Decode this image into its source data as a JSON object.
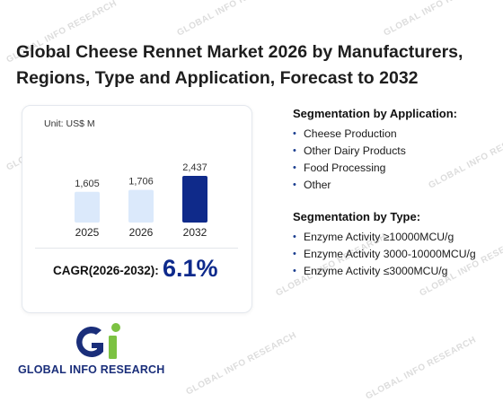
{
  "title": "Global Cheese Rennet Market 2026 by Manufacturers, Regions, Type and Application, Forecast to 2032",
  "chart_data": {
    "type": "bar",
    "unit_label": "Unit: US$ M",
    "categories": [
      "2025",
      "2026",
      "2032"
    ],
    "values": [
      1605,
      1706,
      2437
    ],
    "value_labels": [
      "1,605",
      "1,706",
      "2,437"
    ],
    "bar_colors": [
      "#dbe9fb",
      "#dbe9fb",
      "#0f2a8a"
    ],
    "cagr_label": "CAGR(2026-2032):",
    "cagr_value": "6.1%"
  },
  "segmentation_application": {
    "title": "Segmentation by Application:",
    "items": [
      "Cheese Production",
      "Other Dairy Products",
      "Food Processing",
      "Other"
    ]
  },
  "segmentation_type": {
    "title": "Segmentation by Type:",
    "items": [
      "Enzyme Activity ≥10000MCU/g",
      "Enzyme Activity 3000-10000MCU/g",
      "Enzyme Activity ≤3000MCU/g"
    ]
  },
  "logo": {
    "brand_text": "GLOBAL INFO RESEARCH",
    "colors": {
      "blue": "#1a2e7a",
      "green": "#7cc242"
    }
  },
  "watermark": {
    "text": "GLOBAL INFO RESEARCH"
  }
}
